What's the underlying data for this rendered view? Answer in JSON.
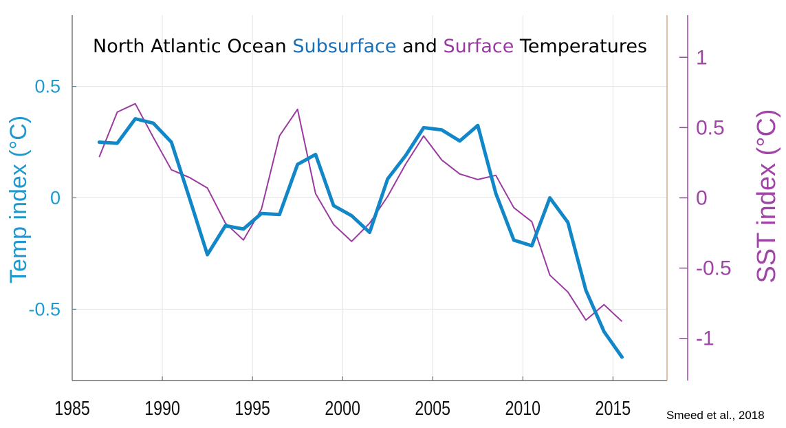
{
  "title": {
    "part1": "North Atlantic Ocean ",
    "part2": "Subsurface",
    "part3": " and ",
    "part4": "Surface",
    "part5": " Temperatures"
  },
  "citation": "Smeed et al., 2018",
  "colors": {
    "subsurface": "#1287c8",
    "surface": "#9a3aa0",
    "left_axis": "#1f9ad0",
    "right_axis": "#a044a8",
    "title_subsurface": "#1a6fb5",
    "title_surface": "#9a3aa0",
    "grid": "#e4e4e4"
  },
  "chart_data": {
    "type": "line",
    "title": "North Atlantic Ocean Subsurface and Surface Temperatures",
    "xlim": [
      1985,
      2018
    ],
    "x_ticks": [
      "1985",
      "1990",
      "1995",
      "2000",
      "2005",
      "2010",
      "2015"
    ],
    "ylabel_left": "Temp index (°C)",
    "ylim_left": [
      -0.82,
      0.82
    ],
    "y_ticks_left": [
      "0.5",
      "0",
      "-0.5"
    ],
    "ylabel_right": "SST index (°C)",
    "ylim_right": [
      -1.3,
      1.3
    ],
    "y_ticks_right": [
      "1",
      "0.5",
      "0",
      "-0.5",
      "-1"
    ],
    "grid": true,
    "series": [
      {
        "name": "Subsurface",
        "axis": "left",
        "x": [
          1986.5,
          1987.5,
          1988.5,
          1989.5,
          1990.5,
          1991.5,
          1992.5,
          1993.5,
          1994.5,
          1995.5,
          1996.5,
          1997.5,
          1998.5,
          1999.5,
          2000.5,
          2001.5,
          2002.5,
          2003.5,
          2004.5,
          2005.5,
          2006.5,
          2007.5,
          2008.5,
          2009.5,
          2010.5,
          2011.5,
          2012.5,
          2013.5,
          2014.5,
          2015.5
        ],
        "values": [
          0.25,
          0.245,
          0.355,
          0.335,
          0.25,
          0.0,
          -0.255,
          -0.125,
          -0.14,
          -0.07,
          -0.075,
          0.15,
          0.195,
          -0.035,
          -0.08,
          -0.155,
          0.085,
          0.19,
          0.315,
          0.305,
          0.255,
          0.325,
          0.02,
          -0.19,
          -0.215,
          0.0,
          -0.11,
          -0.415,
          -0.6,
          -0.715
        ]
      },
      {
        "name": "Surface",
        "axis": "right",
        "x": [
          1986.5,
          1987.5,
          1988.5,
          1989.5,
          1990.5,
          1991.5,
          1992.5,
          1993.5,
          1994.5,
          1995.5,
          1996.5,
          1997.5,
          1998.5,
          1999.5,
          2000.5,
          2001.5,
          2002.5,
          2003.5,
          2004.5,
          2005.5,
          2006.5,
          2007.5,
          2008.5,
          2009.5,
          2010.5,
          2011.5,
          2012.5,
          2013.5,
          2014.5,
          2015.5
        ],
        "values": [
          0.29,
          0.61,
          0.67,
          0.43,
          0.2,
          0.145,
          0.07,
          -0.18,
          -0.3,
          -0.08,
          0.44,
          0.63,
          0.03,
          -0.19,
          -0.31,
          -0.18,
          0.01,
          0.24,
          0.44,
          0.27,
          0.17,
          0.13,
          0.16,
          -0.07,
          -0.17,
          -0.55,
          -0.67,
          -0.87,
          -0.76,
          -0.88
        ]
      }
    ]
  }
}
